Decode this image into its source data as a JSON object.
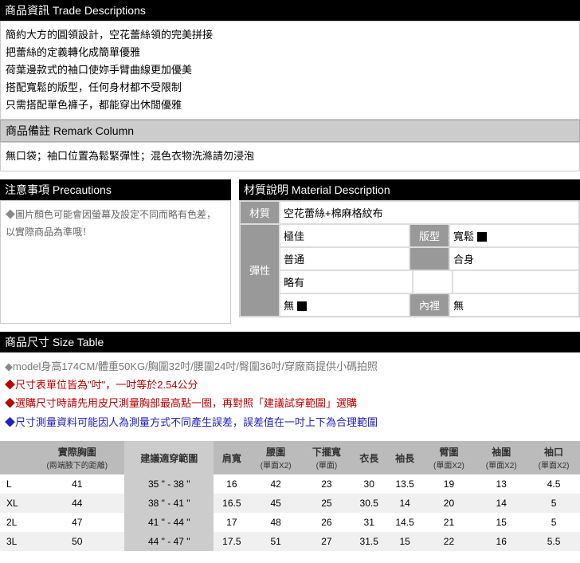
{
  "trade": {
    "header": "商品資訊 Trade Descriptions",
    "lines": [
      "簡約大方的圓領設計，空花蕾絲領的完美拼接",
      "把蕾絲的定義轉化成簡單優雅",
      "荷葉邊款式的袖口使妳手臂曲線更加優美",
      "搭配寬鬆的版型，任何身材都不受限制",
      "只需搭配單色褲子，都能穿出休閒優雅"
    ]
  },
  "remark": {
    "header": "商品備註 Remark Column",
    "text": "無口袋；袖口位置為鬆緊彈性；混色衣物洗滌請勿浸泡"
  },
  "precautions": {
    "header": "注意事項 Precautions",
    "text": "圖片顏色可能會因螢幕及設定不同而略有色差，以實際商品為準哦！"
  },
  "material": {
    "header": "材質說明 Material Description",
    "label_material": "材質",
    "material_value": "空花蕾絲+棉麻格紋布",
    "label_elastic": "彈性",
    "elastic_opts": [
      "極佳",
      "普通",
      "略有",
      "無"
    ],
    "elastic_selected": "無",
    "label_fit": "版型",
    "fit_opts": [
      "寬鬆",
      "合身"
    ],
    "fit_selected": "寬鬆",
    "label_lining": "內裡",
    "lining_value": "無"
  },
  "size": {
    "header": "商品尺寸 Size Table",
    "notes": {
      "model": "model身高174CM/體重50KG/胸圍32吋/腰圍24吋/臀圍36吋/穿廠商提供小碼拍照",
      "unit": "尺寸表單位皆為\"吋\"，一吋等於2.54公分",
      "measure": "選購尺寸時請先用皮尺測量胸部最高點一圈，再對照「建議試穿範圍」選購",
      "tolerance": "尺寸測量資料可能因人為測量方式不同產生誤差，誤差值在一吋上下為合理範圍"
    },
    "columns": [
      {
        "h": "",
        "sub": ""
      },
      {
        "h": "實際胸圍",
        "sub": "(兩端腋下的距離)"
      },
      {
        "h": "建議適穿範圍",
        "sub": ""
      },
      {
        "h": "肩寬",
        "sub": ""
      },
      {
        "h": "腰圍",
        "sub": "(單面X2)"
      },
      {
        "h": "下擺寬",
        "sub": "(單面)"
      },
      {
        "h": "衣長",
        "sub": ""
      },
      {
        "h": "袖長",
        "sub": ""
      },
      {
        "h": "臂圍",
        "sub": "(單面X2)"
      },
      {
        "h": "袖圍",
        "sub": "(單面X2)"
      },
      {
        "h": "袖口",
        "sub": "(單面X2)"
      }
    ],
    "rows": [
      [
        "L",
        "41",
        "35 \" - 38 \"",
        "16",
        "42",
        "23",
        "30",
        "13.5",
        "19",
        "13",
        "4.5"
      ],
      [
        "XL",
        "44",
        "38 \" - 41 \"",
        "16.5",
        "45",
        "25",
        "30.5",
        "14",
        "20",
        "14",
        "5"
      ],
      [
        "2L",
        "47",
        "41 \" - 44 \"",
        "17",
        "48",
        "26",
        "31",
        "14.5",
        "21",
        "15",
        "5"
      ],
      [
        "3L",
        "50",
        "44 \" - 47 \"",
        "17.5",
        "51",
        "27",
        "31.5",
        "15",
        "22",
        "16",
        "5.5"
      ]
    ]
  },
  "colors": {
    "header_bg": "#000000",
    "header_fg": "#ffffff",
    "sub_header_bg": "#cccccc",
    "label_bg": "#999999",
    "table_header_bg": "#bbbbbb",
    "highlight_bg": "#cccccc"
  }
}
